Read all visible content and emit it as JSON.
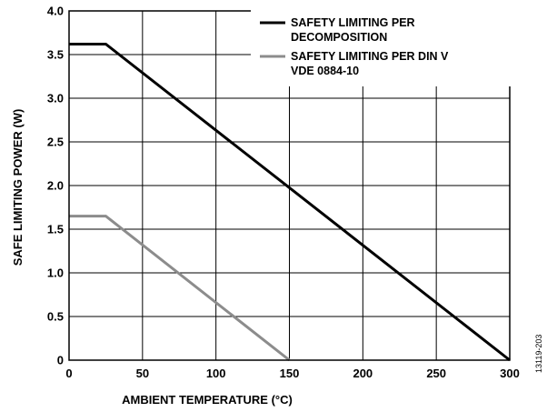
{
  "chart_data": {
    "type": "line",
    "xlabel": "AMBIENT TEMPERATURE (°C)",
    "ylabel": "SAFE LIMITING POWER (W)",
    "xlim": [
      0,
      300
    ],
    "ylim": [
      0,
      4.0
    ],
    "x_ticks": [
      "0",
      "50",
      "100",
      "150",
      "200",
      "250",
      "300"
    ],
    "y_ticks": [
      "0",
      "0.5",
      "1.0",
      "1.5",
      "2.0",
      "2.5",
      "3.0",
      "3.5",
      "4.0"
    ],
    "grid": true,
    "legend_position": "top-right",
    "series": [
      {
        "name_lines": [
          "SAFETY LIMITING PER",
          "DECOMPOSITION"
        ],
        "color": "#000000",
        "points": [
          [
            0,
            3.62
          ],
          [
            25,
            3.62
          ],
          [
            300,
            0
          ]
        ]
      },
      {
        "name_lines": [
          "SAFETY LIMITING PER DIN V",
          "VDE 0884-10"
        ],
        "color": "#8c8c8c",
        "points": [
          [
            0,
            1.65
          ],
          [
            25,
            1.65
          ],
          [
            150,
            0
          ]
        ]
      }
    ],
    "figure_id": "13119-203"
  }
}
